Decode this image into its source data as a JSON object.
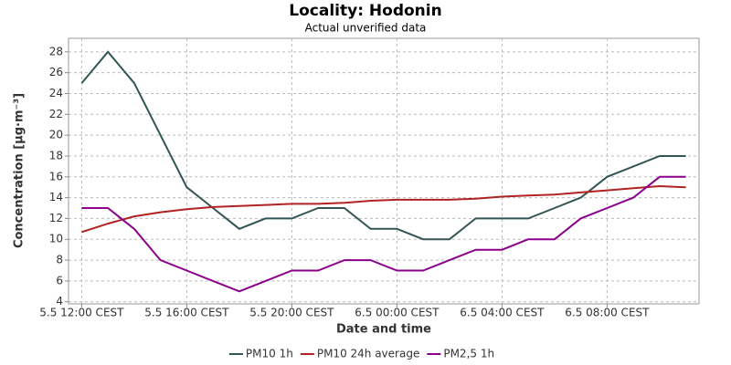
{
  "chart_data": {
    "type": "line",
    "title": "Locality: Hodonin",
    "subtitle": "Actual unverified data",
    "x_label": "Date and time",
    "y_label": "Concentration [µg·m⁻³]",
    "categories": [
      "5.5 12:00 CEST",
      null,
      null,
      null,
      "5.5 16:00 CEST",
      null,
      null,
      null,
      "5.5 20:00 CEST",
      null,
      null,
      null,
      "6.5 00:00 CEST",
      null,
      null,
      null,
      "6.5 04:00 CEST",
      null,
      null,
      null,
      "6.5 08:00 CEST",
      null,
      null,
      null
    ],
    "series": [
      {
        "name": "PM10 1h",
        "color": "#335555",
        "values": [
          25,
          28,
          25,
          20,
          15,
          13,
          11,
          12,
          12,
          13,
          13,
          11,
          11,
          10,
          10,
          12,
          12,
          12,
          13,
          14,
          16,
          17,
          18,
          18
        ]
      },
      {
        "name": "PM10 24h average",
        "color": "#b22222",
        "values": [
          10.7,
          11.5,
          12.2,
          12.6,
          12.9,
          13.1,
          13.2,
          13.3,
          13.4,
          13.4,
          13.5,
          13.7,
          13.8,
          13.8,
          13.8,
          13.9,
          14.1,
          14.2,
          14.3,
          14.5,
          14.7,
          14.9,
          15.1,
          15.0
        ]
      },
      {
        "name": "PM2,5 1h",
        "color": "#8b008b",
        "values": [
          13,
          13,
          11,
          8,
          7,
          6,
          5,
          6,
          7,
          7,
          8,
          8,
          7,
          7,
          8,
          9,
          9,
          10,
          10,
          12,
          13,
          14,
          16,
          16
        ]
      }
    ],
    "ylim": [
      3.8,
      29.3
    ],
    "yticks": [
      4,
      6,
      8,
      10,
      12,
      14,
      16,
      18,
      20,
      22,
      24,
      26,
      28
    ],
    "grid": true,
    "legend": "bottom"
  }
}
